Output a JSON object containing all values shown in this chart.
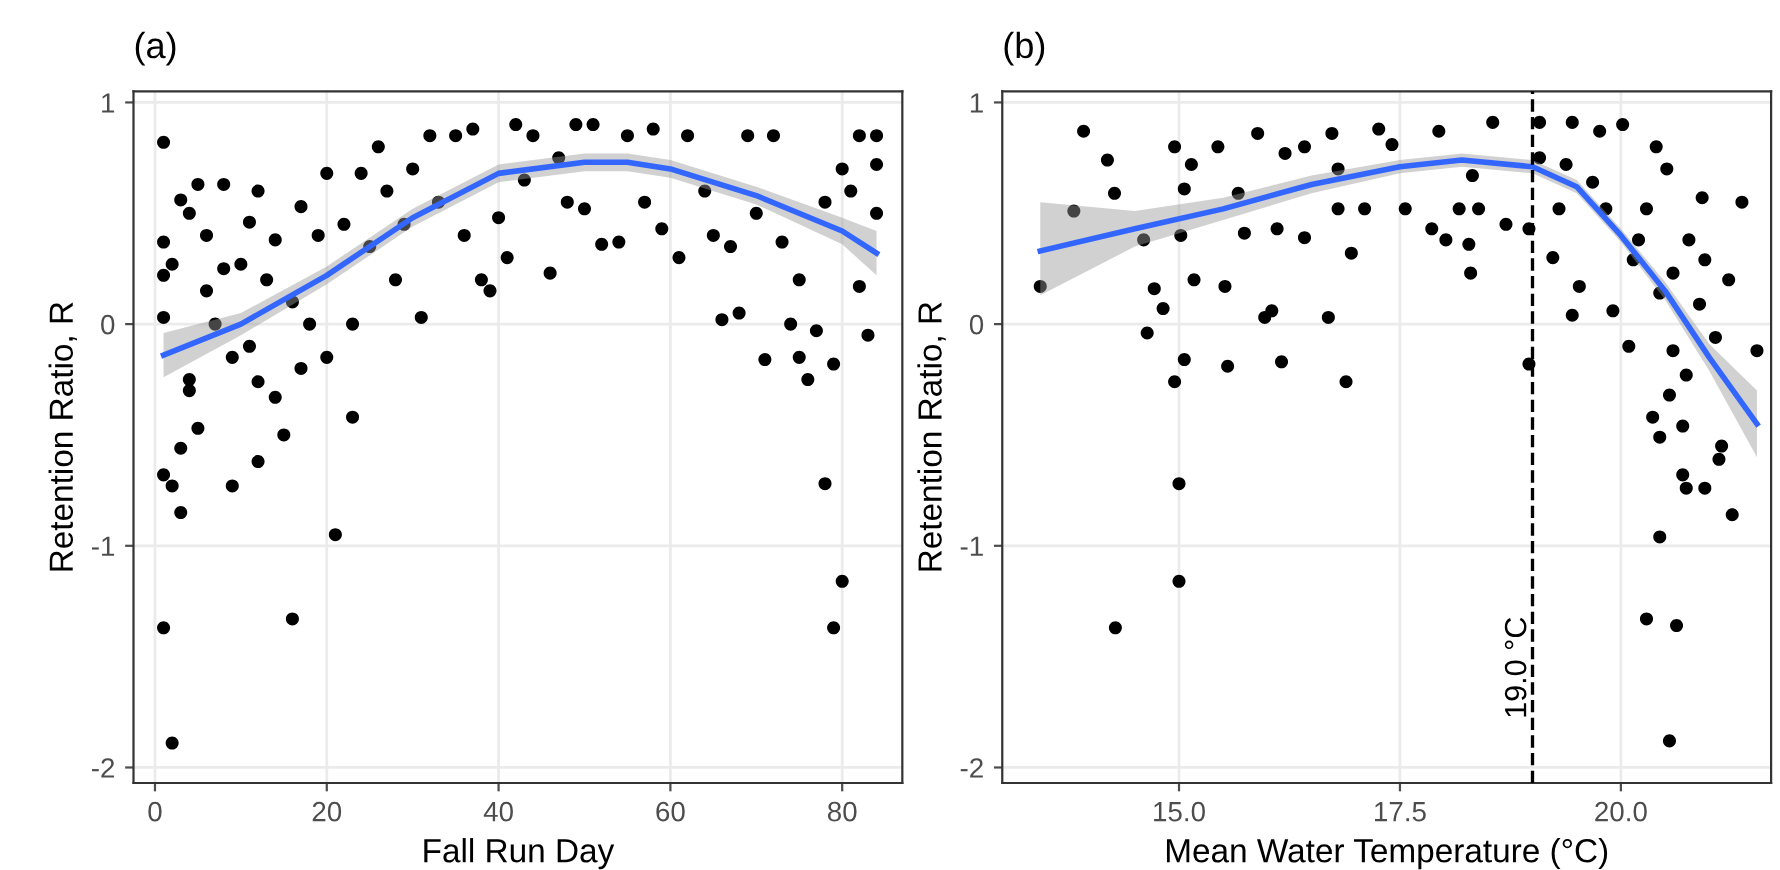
{
  "chart_data": [
    {
      "type": "scatter",
      "title": "(a)",
      "xlabel": "Fall Run Day",
      "ylabel": "Retention Ratio, R",
      "xlim": [
        -2.5,
        87
      ],
      "xticks": [
        0,
        20,
        40,
        60,
        80
      ],
      "ylim": [
        -2.07,
        1.05
      ],
      "yticks": [
        -2,
        -1,
        0,
        1
      ],
      "grid": true,
      "legend": false,
      "series": [
        {
          "marker": "circle",
          "color": "#000000",
          "x": [
            1,
            1,
            1,
            1,
            1,
            1,
            2,
            2,
            2,
            3,
            3,
            3,
            4,
            4,
            4,
            5,
            5,
            6,
            6,
            7,
            8,
            8,
            9,
            9,
            10,
            11,
            11,
            12,
            12,
            12,
            13,
            14,
            14,
            15,
            16,
            16,
            17,
            17,
            18,
            19,
            20,
            20,
            21,
            22,
            23,
            23,
            24,
            25,
            26,
            27,
            28,
            29,
            30,
            31,
            32,
            33,
            35,
            36,
            37,
            38,
            39,
            40,
            41,
            42,
            43,
            44,
            46,
            47,
            48,
            49,
            50,
            51,
            52,
            54,
            55,
            57,
            58,
            59,
            61,
            62,
            64,
            65,
            66,
            67,
            68,
            69,
            70,
            71,
            72,
            73,
            74,
            75,
            75,
            76,
            77,
            78,
            78,
            79,
            79,
            80,
            80,
            81,
            82,
            82,
            83,
            84,
            84,
            84
          ],
          "values": [
            0.82,
            0.37,
            0.22,
            0.03,
            -0.68,
            -1.37,
            -1.89,
            -0.73,
            0.27,
            0.56,
            -0.56,
            -0.85,
            0.5,
            -0.25,
            -0.3,
            0.63,
            -0.47,
            0.4,
            0.15,
            0.0,
            0.63,
            0.25,
            -0.73,
            -0.15,
            0.27,
            0.46,
            -0.1,
            0.6,
            -0.26,
            -0.62,
            0.2,
            0.38,
            -0.33,
            -0.5,
            -1.33,
            0.1,
            0.53,
            -0.2,
            0.0,
            0.4,
            0.68,
            -0.15,
            -0.95,
            0.45,
            -0.42,
            0.0,
            0.68,
            0.35,
            0.8,
            0.6,
            0.2,
            0.45,
            0.7,
            0.03,
            0.85,
            0.55,
            0.85,
            0.4,
            0.88,
            0.2,
            0.15,
            0.48,
            0.3,
            0.9,
            0.65,
            0.85,
            0.23,
            0.75,
            0.55,
            0.9,
            0.52,
            0.9,
            0.36,
            0.37,
            0.85,
            0.55,
            0.88,
            0.43,
            0.3,
            0.85,
            0.6,
            0.4,
            0.02,
            0.35,
            0.05,
            0.85,
            0.5,
            -0.16,
            0.85,
            0.37,
            0.0,
            0.2,
            -0.15,
            -0.25,
            -0.03,
            -0.72,
            0.55,
            -1.37,
            -0.18,
            -1.16,
            0.7,
            0.6,
            0.85,
            0.17,
            -0.05,
            0.5,
            0.72,
            0.85
          ]
        },
        {
          "type": "line",
          "marker": "none",
          "color": "#3366ff",
          "x": [
            1,
            10,
            20,
            30,
            40,
            50,
            55,
            60,
            70,
            80,
            84
          ],
          "values": [
            -0.14,
            0.0,
            0.22,
            0.48,
            0.68,
            0.73,
            0.73,
            0.7,
            0.58,
            0.42,
            0.32
          ],
          "lower": [
            -0.24,
            -0.05,
            0.18,
            0.44,
            0.64,
            0.69,
            0.69,
            0.66,
            0.54,
            0.36,
            0.22
          ],
          "upper": [
            -0.04,
            0.05,
            0.26,
            0.52,
            0.72,
            0.77,
            0.77,
            0.74,
            0.62,
            0.48,
            0.42
          ]
        }
      ]
    },
    {
      "type": "scatter",
      "title": "(b)",
      "xlabel": "Mean Water Temperature (°C)",
      "ylabel": "Retention Ratio, R",
      "xlim": [
        13.0,
        21.7
      ],
      "xticks": [
        {
          "value": 15,
          "label": "15.0"
        },
        {
          "value": 17.5,
          "label": "17.5"
        },
        {
          "value": 20,
          "label": "20.0"
        }
      ],
      "ylim": [
        -2.07,
        1.05
      ],
      "yticks": [
        -2,
        -1,
        0,
        1
      ],
      "grid": true,
      "legend": false,
      "ref_lines": [
        {
          "axis": "x",
          "value": 19.0,
          "label": "19.0 °C",
          "color": "#000000",
          "line_style": "dashed"
        }
      ],
      "series": [
        {
          "marker": "circle",
          "color": "#000000",
          "x": [
            13.43,
            13.81,
            13.92,
            14.19,
            14.27,
            14.28,
            14.6,
            14.72,
            14.64,
            14.82,
            14.95,
            15.0,
            15.0,
            15.02,
            15.06,
            15.06,
            14.95,
            15.17,
            15.52,
            15.55,
            15.44,
            15.74,
            15.97,
            16.05,
            16.16,
            16.11,
            15.89,
            16.42,
            16.69,
            16.89,
            16.95,
            16.8,
            16.73,
            17.1,
            17.26,
            17.56,
            17.86,
            18.02,
            18.17,
            18.28,
            18.3,
            18.39,
            18.55,
            18.7,
            18.96,
            18.96,
            19.08,
            19.23,
            19.45,
            19.45,
            19.53,
            19.76,
            19.83,
            19.91,
            20.02,
            20.09,
            20.14,
            20.29,
            20.4,
            20.36,
            20.44,
            20.44,
            20.52,
            20.55,
            20.63,
            20.55,
            20.7,
            20.7,
            20.74,
            20.77,
            20.92,
            20.95,
            20.95,
            21.07,
            21.11,
            21.14,
            21.22,
            21.26,
            21.37,
            21.54,
            20.89,
            20.59,
            20.29,
            19.68,
            19.3,
            19.38,
            19.08,
            20.59,
            20.44,
            20.2,
            20.74,
            17.41,
            16.42,
            15.67,
            15.14,
            17.94,
            18.32,
            16.2,
            16.8
          ],
          "values": [
            0.17,
            0.51,
            0.87,
            0.74,
            0.59,
            -1.37,
            0.38,
            0.16,
            -0.04,
            0.07,
            -0.26,
            -0.72,
            -1.16,
            0.4,
            -0.16,
            0.61,
            0.8,
            0.2,
            0.17,
            -0.19,
            0.8,
            0.41,
            0.03,
            0.06,
            -0.17,
            0.43,
            0.86,
            0.39,
            0.03,
            -0.26,
            0.32,
            0.52,
            0.86,
            0.52,
            0.88,
            0.52,
            0.43,
            0.38,
            0.52,
            0.36,
            0.23,
            0.52,
            0.91,
            0.45,
            0.43,
            -0.18,
            0.91,
            0.3,
            0.91,
            0.04,
            0.17,
            0.87,
            0.52,
            0.06,
            0.9,
            -0.1,
            0.29,
            -1.33,
            0.8,
            -0.42,
            -0.51,
            -0.96,
            0.7,
            -0.32,
            -1.36,
            -1.88,
            -0.46,
            -0.68,
            -0.74,
            0.38,
            0.57,
            -0.74,
            0.29,
            -0.06,
            -0.61,
            -0.55,
            0.2,
            -0.86,
            0.55,
            -0.12,
            0.09,
            0.23,
            0.52,
            0.64,
            0.52,
            0.72,
            0.75,
            -0.12,
            0.14,
            0.38,
            -0.23,
            0.81,
            0.8,
            0.59,
            0.72,
            0.87,
            0.67,
            0.77,
            0.7
          ]
        },
        {
          "type": "line",
          "marker": "none",
          "color": "#3366ff",
          "x": [
            13.43,
            14.5,
            15.5,
            16.5,
            17.5,
            18.2,
            19.0,
            19.5,
            20.0,
            20.5,
            21.0,
            21.54
          ],
          "values": [
            0.33,
            0.43,
            0.52,
            0.63,
            0.71,
            0.74,
            0.71,
            0.62,
            0.4,
            0.15,
            -0.15,
            -0.45
          ],
          "lower": [
            0.13,
            0.35,
            0.47,
            0.59,
            0.68,
            0.71,
            0.68,
            0.59,
            0.37,
            0.11,
            -0.21,
            -0.6
          ],
          "upper": [
            0.55,
            0.51,
            0.57,
            0.67,
            0.74,
            0.77,
            0.74,
            0.65,
            0.43,
            0.19,
            -0.09,
            -0.3
          ]
        }
      ]
    }
  ]
}
